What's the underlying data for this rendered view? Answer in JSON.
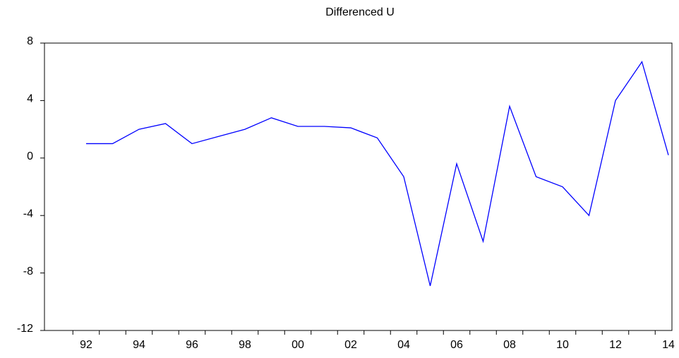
{
  "chart_data": {
    "type": "line",
    "title": "Differenced U",
    "categories": [
      "92",
      null,
      "94",
      null,
      "96",
      null,
      "98",
      null,
      "00",
      null,
      "02",
      null,
      "04",
      null,
      "06",
      null,
      "08",
      null,
      "10",
      null,
      "12",
      null,
      "14"
    ],
    "series": [
      {
        "name": "Differenced U",
        "color": "#0000ff",
        "values": [
          1.0,
          1.0,
          2.0,
          2.4,
          1.0,
          1.5,
          2.0,
          2.8,
          2.2,
          2.2,
          2.1,
          1.4,
          -1.3,
          -8.9,
          -0.4,
          -5.8,
          3.6,
          -1.3,
          -2.0,
          -4.0,
          4.0,
          6.7,
          0.2
        ]
      }
    ],
    "ylim": [
      -12,
      8
    ],
    "yticks": [
      -12,
      -8,
      -4,
      0,
      4,
      8
    ],
    "grid": false
  }
}
